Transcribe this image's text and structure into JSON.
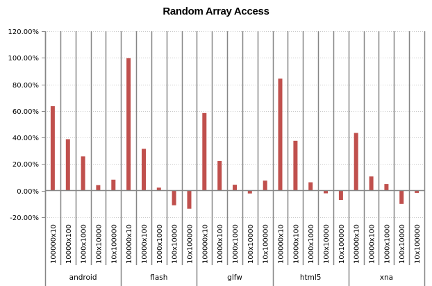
{
  "chart_data": {
    "type": "bar",
    "title": "Random Array Access",
    "xlabel": "",
    "ylabel": "",
    "ylim": [
      -0.2,
      1.2
    ],
    "yticks": [
      "120.00%",
      "100.00%",
      "80.00%",
      "60.00%",
      "40.00%",
      "20.00%",
      "0.00%",
      "-20.00%"
    ],
    "ytick_values": [
      1.2,
      1.0,
      0.8,
      0.6,
      0.4,
      0.2,
      0.0,
      -0.2
    ],
    "grid": "horizontal dotted",
    "legend": "none",
    "bar_color": "#C0504D",
    "groups": [
      "android",
      "flash",
      "glfw",
      "html5",
      "xna"
    ],
    "subcategories": [
      "100000x10",
      "10000x100",
      "1000x1000",
      "100x10000",
      "10x100000"
    ],
    "series": [
      {
        "name": "Random Array Access",
        "values": {
          "android": [
            0.636,
            0.387,
            0.257,
            0.041,
            0.082
          ],
          "flash": [
            0.997,
            0.314,
            0.022,
            -0.111,
            -0.137
          ],
          "glfw": [
            0.584,
            0.222,
            0.044,
            -0.022,
            0.075
          ],
          "html5": [
            0.843,
            0.375,
            0.062,
            -0.021,
            -0.071
          ],
          "xna": [
            0.434,
            0.106,
            0.049,
            -0.101,
            -0.018
          ]
        }
      }
    ]
  }
}
